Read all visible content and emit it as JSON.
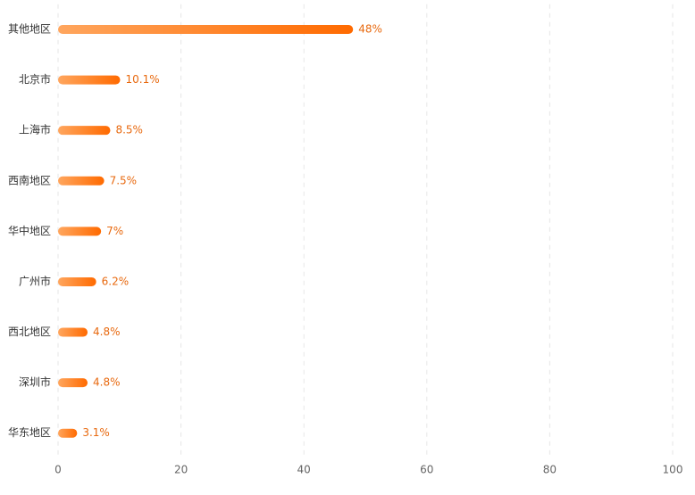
{
  "chart_data": {
    "type": "hbar",
    "categories": [
      "其他地区",
      "北京市",
      "上海市",
      "西南地区",
      "华中地区",
      "广州市",
      "西北地区",
      "深圳市",
      "华东地区"
    ],
    "values": [
      48,
      10.1,
      8.5,
      7.5,
      7,
      6.2,
      4.8,
      4.8,
      3.1
    ],
    "value_labels": [
      "48%",
      "10.1%",
      "8.5%",
      "7.5%",
      "7%",
      "6.2%",
      "4.8%",
      "4.8%",
      "3.1%"
    ],
    "gradient": [
      "#ffa65e",
      "#ff6a00"
    ],
    "xlim": [
      0,
      100
    ],
    "xticks": [
      0,
      20,
      40,
      60,
      80,
      100
    ],
    "grid": true
  }
}
